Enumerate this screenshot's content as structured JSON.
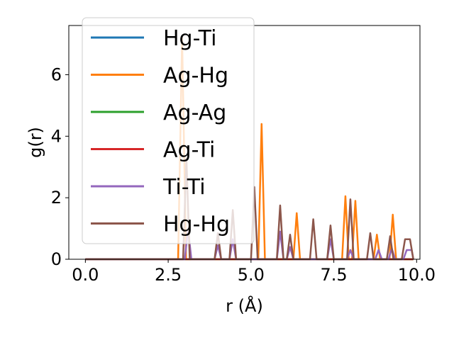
{
  "chart_data": {
    "type": "line",
    "xlabel": "r (Å)",
    "ylabel": "g(r)",
    "xlim": [
      -0.5,
      10.1
    ],
    "ylim": [
      0,
      7.6
    ],
    "x_ticks": [
      0.0,
      2.5,
      5.0,
      7.5,
      10.0
    ],
    "x_tick_labels": [
      "0.0",
      "2.5",
      "5.0",
      "7.5",
      "10.0"
    ],
    "y_ticks": [
      0,
      2,
      4,
      6
    ],
    "y_tick_labels": [
      "0",
      "2",
      "4",
      "6"
    ],
    "grid": false,
    "legend_position": "top-left",
    "series": [
      {
        "name": "Hg-Ti",
        "color": "#1f77b4",
        "points": [
          [
            0,
            0
          ],
          [
            9.9,
            0
          ]
        ]
      },
      {
        "name": "Ag-Hg",
        "color": "#ff7f0e",
        "points": [
          [
            0,
            0
          ],
          [
            2.8,
            0
          ],
          [
            2.92,
            7.2
          ],
          [
            3.04,
            0
          ],
          [
            5.22,
            0
          ],
          [
            5.32,
            4.4
          ],
          [
            5.42,
            0
          ],
          [
            6.28,
            0
          ],
          [
            6.38,
            1.5
          ],
          [
            6.48,
            0
          ],
          [
            7.75,
            0
          ],
          [
            7.85,
            2.05
          ],
          [
            7.95,
            0
          ],
          [
            8.05,
            0
          ],
          [
            8.15,
            1.9
          ],
          [
            8.25,
            0
          ],
          [
            8.7,
            0
          ],
          [
            8.8,
            0.8
          ],
          [
            8.9,
            0
          ],
          [
            9.18,
            0
          ],
          [
            9.28,
            1.45
          ],
          [
            9.38,
            0
          ],
          [
            9.9,
            0
          ]
        ]
      },
      {
        "name": "Ag-Ag",
        "color": "#2ca02c",
        "points": [
          [
            0,
            0
          ],
          [
            9.9,
            0
          ]
        ]
      },
      {
        "name": "Ag-Ti",
        "color": "#d62728",
        "points": [
          [
            0,
            0
          ],
          [
            9.9,
            0
          ]
        ]
      },
      {
        "name": "Ti-Ti",
        "color": "#9467bd",
        "points": [
          [
            0,
            0
          ],
          [
            3.0,
            0
          ],
          [
            3.1,
            1.0
          ],
          [
            3.2,
            0
          ],
          [
            3.9,
            0
          ],
          [
            4.0,
            0.45
          ],
          [
            4.1,
            0
          ],
          [
            4.35,
            0
          ],
          [
            4.45,
            0.65
          ],
          [
            4.55,
            0
          ],
          [
            5.78,
            0
          ],
          [
            5.88,
            0.9
          ],
          [
            5.98,
            0
          ],
          [
            6.08,
            0
          ],
          [
            6.18,
            0.4
          ],
          [
            6.28,
            0
          ],
          [
            7.3,
            0
          ],
          [
            7.4,
            0.65
          ],
          [
            7.5,
            0
          ],
          [
            7.9,
            0
          ],
          [
            8.0,
            0.3
          ],
          [
            8.1,
            0
          ],
          [
            8.75,
            0
          ],
          [
            8.85,
            0.3
          ],
          [
            8.95,
            0
          ],
          [
            9.15,
            0
          ],
          [
            9.25,
            0.35
          ],
          [
            9.35,
            0
          ],
          [
            9.6,
            0
          ],
          [
            9.7,
            0.3
          ],
          [
            9.85,
            0.3
          ],
          [
            9.9,
            0
          ]
        ]
      },
      {
        "name": "Hg-Hg",
        "color": "#8c564b",
        "points": [
          [
            0,
            0
          ],
          [
            2.95,
            0
          ],
          [
            3.05,
            3.3
          ],
          [
            3.15,
            0
          ],
          [
            3.9,
            0
          ],
          [
            4.0,
            0.85
          ],
          [
            4.1,
            0
          ],
          [
            4.35,
            0
          ],
          [
            4.45,
            1.6
          ],
          [
            4.55,
            0
          ],
          [
            5.0,
            0
          ],
          [
            5.1,
            2.35
          ],
          [
            5.2,
            0
          ],
          [
            5.78,
            0
          ],
          [
            5.88,
            1.75
          ],
          [
            5.98,
            0
          ],
          [
            6.08,
            0
          ],
          [
            6.18,
            0.8
          ],
          [
            6.28,
            0
          ],
          [
            6.78,
            0
          ],
          [
            6.88,
            1.3
          ],
          [
            6.98,
            0
          ],
          [
            7.3,
            0
          ],
          [
            7.4,
            1.1
          ],
          [
            7.5,
            0
          ],
          [
            7.9,
            0
          ],
          [
            8.0,
            1.95
          ],
          [
            8.1,
            0
          ],
          [
            8.5,
            0
          ],
          [
            8.6,
            0.85
          ],
          [
            8.7,
            0
          ],
          [
            9.1,
            0
          ],
          [
            9.2,
            0.75
          ],
          [
            9.3,
            0
          ],
          [
            9.55,
            0
          ],
          [
            9.65,
            0.65
          ],
          [
            9.8,
            0.65
          ],
          [
            9.9,
            0
          ]
        ]
      }
    ]
  }
}
